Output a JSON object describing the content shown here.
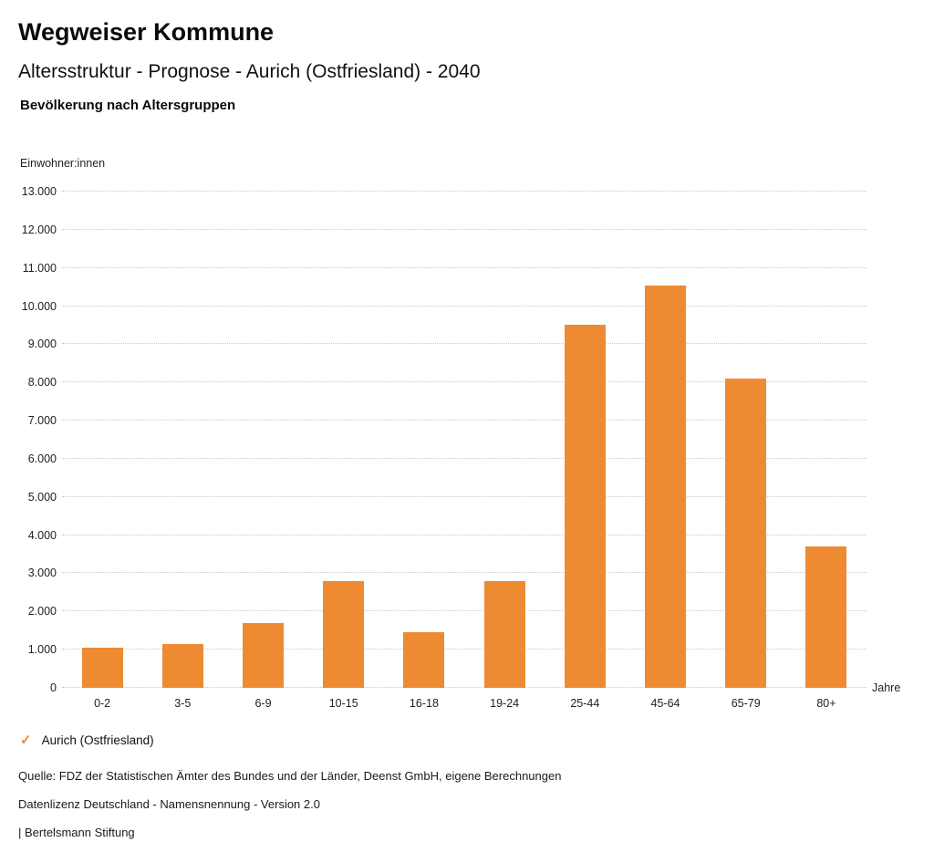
{
  "header": {
    "title": "Wegweiser Kommune",
    "subtitle": "Altersstruktur - Prognose - Aurich (Ostfriesland) - 2040",
    "chart_heading": "Bevölkerung nach Altersgruppen"
  },
  "chart_data": {
    "type": "bar",
    "title": "Bevölkerung nach Altersgruppen",
    "ylabel": "Einwohner:innen",
    "xlabel": "Jahre",
    "categories": [
      "0-2",
      "3-5",
      "6-9",
      "10-15",
      "16-18",
      "19-24",
      "25-44",
      "45-64",
      "65-79",
      "80+"
    ],
    "values": [
      1050,
      1150,
      1700,
      2800,
      1450,
      2800,
      9500,
      10550,
      8100,
      3700
    ],
    "series_name": "Aurich (Ostfriesland)",
    "ylim": [
      0,
      13000
    ],
    "ytick_step": 1000,
    "ytick_labels": [
      "0",
      "1.000",
      "2.000",
      "3.000",
      "4.000",
      "5.000",
      "6.000",
      "7.000",
      "8.000",
      "9.000",
      "10.000",
      "11.000",
      "12.000",
      "13.000"
    ],
    "grid": true,
    "legend_position": "bottom-left",
    "bar_color": "#EE8B32"
  },
  "legend": {
    "check_icon": "✓",
    "label": "Aurich (Ostfriesland)"
  },
  "footer": {
    "source": "Quelle: FDZ der Statistischen Ämter des Bundes und der Länder, Deenst GmbH, eigene Berechnungen",
    "license": "Datenlizenz Deutschland - Namensnennung - Version 2.0",
    "attribution": "| Bertelsmann Stiftung"
  }
}
